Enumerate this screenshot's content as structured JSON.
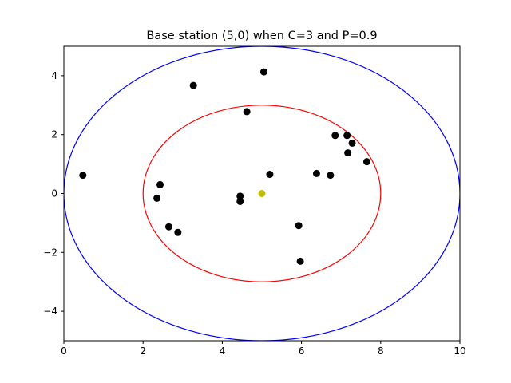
{
  "chart_data": {
    "type": "scatter",
    "title": "Base station (5,0) when C=3 and P=0.9",
    "xlabel": "",
    "ylabel": "",
    "xlim": [
      0,
      10
    ],
    "ylim": [
      -5,
      5
    ],
    "x_ticks": [
      0,
      2,
      4,
      6,
      8,
      10
    ],
    "y_ticks": [
      -4,
      -2,
      0,
      2,
      4
    ],
    "grid": false,
    "base_station": {
      "x": 5,
      "y": 0,
      "color": "#bfbf00"
    },
    "circles": [
      {
        "cx": 5,
        "cy": 0,
        "r": 3,
        "color": "#ff0000"
      },
      {
        "cx": 5,
        "cy": 0,
        "r": 5,
        "color": "#0000ff"
      }
    ],
    "points_color": "#000000",
    "points": [
      [
        0.48,
        0.62
      ],
      [
        3.27,
        3.67
      ],
      [
        5.05,
        4.13
      ],
      [
        4.62,
        2.78
      ],
      [
        2.43,
        0.3
      ],
      [
        2.35,
        -0.16
      ],
      [
        2.65,
        -1.13
      ],
      [
        2.88,
        -1.32
      ],
      [
        4.45,
        -0.09
      ],
      [
        4.45,
        -0.27
      ],
      [
        5.2,
        0.65
      ],
      [
        5.93,
        -1.09
      ],
      [
        5.97,
        -2.3
      ],
      [
        6.38,
        0.68
      ],
      [
        6.73,
        0.62
      ],
      [
        6.85,
        1.97
      ],
      [
        7.15,
        1.97
      ],
      [
        7.28,
        1.71
      ],
      [
        7.17,
        1.38
      ],
      [
        7.65,
        1.08
      ]
    ]
  }
}
